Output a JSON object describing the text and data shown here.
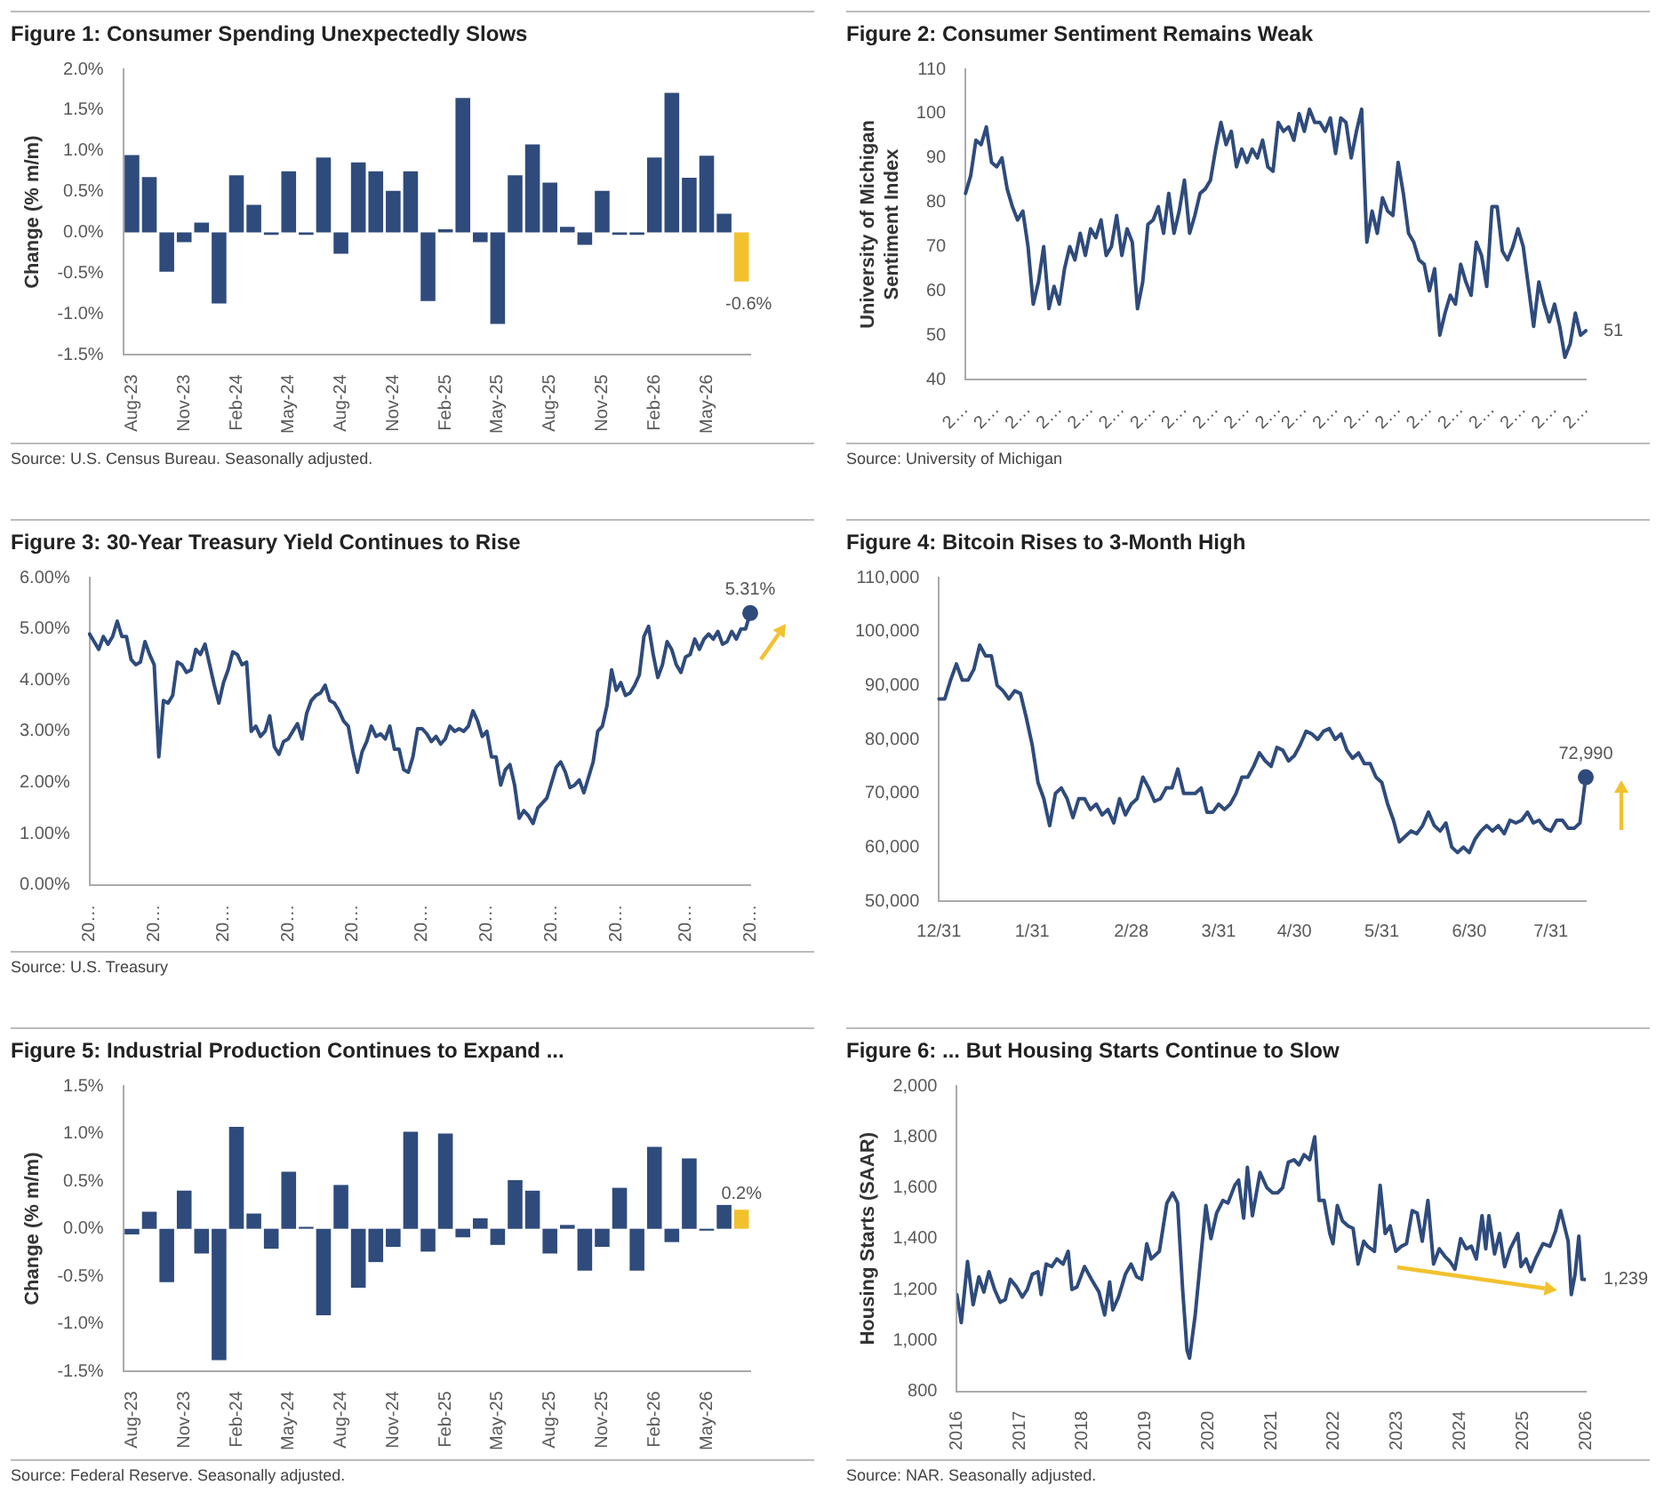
{
  "chart_data": [
    {
      "type": "bar",
      "title": "Figure 1: Consumer Spending Unexpectedly Slows",
      "ylabel": "Change (% m/m)",
      "categories": [
        "Aug-23",
        null,
        null,
        "Nov-23",
        null,
        null,
        "Feb-24",
        null,
        null,
        "May-24",
        null,
        null,
        "Aug-24",
        null,
        null,
        "Nov-24",
        null,
        null,
        "Feb-25",
        null,
        null,
        "May-25",
        null,
        null,
        "Aug-25",
        null,
        null,
        "Nov-25",
        null,
        null,
        "Feb-26",
        null,
        null,
        "May-26",
        null,
        null
      ],
      "values": [
        0.95,
        0.68,
        -0.48,
        -0.12,
        0.12,
        -0.87,
        0.7,
        0.34,
        -0.03,
        0.75,
        -0.03,
        0.92,
        -0.26,
        0.86,
        0.75,
        0.51,
        0.75,
        -0.84,
        0.04,
        1.65,
        -0.12,
        -1.12,
        0.7,
        1.08,
        0.61,
        0.07,
        -0.15,
        0.51,
        -0.03,
        -0.03,
        0.92,
        1.71,
        0.67,
        0.94,
        0.23,
        -0.6
      ],
      "colors": [
        "#2f4b7c",
        "#2f4b7c",
        "#2f4b7c",
        "#2f4b7c",
        "#2f4b7c",
        "#2f4b7c",
        "#2f4b7c",
        "#2f4b7c",
        "#2f4b7c",
        "#2f4b7c",
        "#2f4b7c",
        "#2f4b7c",
        "#2f4b7c",
        "#2f4b7c",
        "#2f4b7c",
        "#2f4b7c",
        "#2f4b7c",
        "#2f4b7c",
        "#2f4b7c",
        "#2f4b7c",
        "#2f4b7c",
        "#2f4b7c",
        "#2f4b7c",
        "#2f4b7c",
        "#2f4b7c",
        "#2f4b7c",
        "#2f4b7c",
        "#2f4b7c",
        "#2f4b7c",
        "#2f4b7c",
        "#2f4b7c",
        "#2f4b7c",
        "#2f4b7c",
        "#2f4b7c",
        "#2f4b7c",
        "#f2c12e"
      ],
      "value_labels": [
        null,
        null,
        null,
        null,
        null,
        null,
        null,
        null,
        null,
        null,
        null,
        null,
        null,
        null,
        null,
        null,
        null,
        null,
        null,
        null,
        null,
        null,
        null,
        null,
        null,
        null,
        null,
        null,
        null,
        null,
        null,
        null,
        null,
        null,
        null,
        "-0.6%"
      ],
      "ylim": [
        -1.5,
        2.0
      ],
      "yticks": [
        {
          "value": -1.5,
          "label": "-1.5%"
        },
        {
          "value": -1.0,
          "label": "-1.0%"
        },
        {
          "value": -0.5,
          "label": "-0.5%"
        },
        {
          "value": 0,
          "label": "0.0%"
        },
        {
          "value": 0.5,
          "label": "0.5%"
        },
        {
          "value": 1.0,
          "label": "1.0%"
        },
        {
          "value": 1.5,
          "label": "1.5%"
        },
        {
          "value": 2.0,
          "label": "2.0%"
        }
      ],
      "annotations": [
        "Source: U.S. Census Bureau. Seasonally adjusted."
      ]
    },
    {
      "type": "line",
      "title": "Figure 2: Consumer Sentiment Remains Weak",
      "ylabel": "University of Michigan\nSentiment Index",
      "categories": [
        "2…",
        null,
        null,
        null,
        null,
        null,
        "2…",
        null,
        null,
        null,
        null,
        null,
        "2…",
        null,
        null,
        null,
        null,
        null,
        "2…",
        null,
        null,
        null,
        null,
        null,
        "2…",
        null,
        null,
        null,
        null,
        null,
        "2…",
        null,
        null,
        null,
        null,
        null,
        "2…",
        null,
        null,
        null,
        null,
        null,
        "2…",
        null,
        null,
        null,
        null,
        null,
        "2…",
        null,
        null,
        null,
        null,
        null,
        "2…",
        null,
        null,
        null,
        null,
        null,
        "2…",
        null,
        null,
        null,
        null,
        "2…",
        null,
        null,
        null,
        null,
        null,
        "2…",
        null,
        null,
        null,
        null,
        null,
        "2…",
        null,
        null,
        null,
        null,
        null,
        "2…",
        null,
        null,
        null,
        null,
        null,
        "2…",
        null,
        null,
        null,
        null,
        null,
        "2…",
        null,
        null,
        null,
        null,
        null,
        "2…",
        null,
        null,
        null,
        null,
        null,
        "2…",
        null,
        null,
        null,
        null,
        null,
        "2…",
        null,
        null,
        null,
        null,
        null,
        "2…"
      ],
      "series": [
        {
          "color": "#2f4b7c",
          "values": [
            82,
            86,
            94,
            93,
            97,
            89,
            88,
            90,
            83,
            79,
            76,
            78,
            70,
            57,
            62,
            70,
            56,
            61,
            57,
            65,
            70,
            67,
            73,
            68,
            74,
            72,
            76,
            68,
            70,
            77,
            68,
            74,
            71,
            56,
            62,
            75,
            76,
            79,
            73,
            82,
            73,
            78,
            85,
            73,
            77,
            82,
            83,
            85,
            92,
            98,
            93,
            96,
            88,
            92,
            89,
            92,
            90,
            94,
            88,
            87,
            98,
            96,
            97,
            94,
            100,
            96,
            101,
            98,
            98,
            96,
            99,
            91,
            99,
            98,
            90,
            96,
            101,
            71,
            78,
            73,
            81,
            78,
            77,
            89,
            82,
            73,
            71,
            67,
            66,
            60,
            65,
            50,
            55,
            59,
            57,
            66,
            62,
            59,
            71,
            68,
            61,
            79,
            79,
            69,
            67,
            70,
            74,
            70,
            61,
            52,
            62,
            57,
            53,
            57,
            52,
            45,
            48,
            55,
            50,
            51
          ],
          "value_labels": [
            null,
            null,
            null,
            null,
            null,
            null,
            null,
            null,
            null,
            null,
            null,
            null,
            null,
            null,
            null,
            null,
            null,
            null,
            null,
            null,
            null,
            null,
            null,
            null,
            null,
            null,
            null,
            null,
            null,
            null,
            null,
            null,
            null,
            null,
            null,
            null,
            null,
            null,
            null,
            null,
            null,
            null,
            null,
            null,
            null,
            null,
            null,
            null,
            null,
            null,
            null,
            null,
            null,
            null,
            null,
            null,
            null,
            null,
            null,
            null,
            null,
            null,
            null,
            null,
            null,
            null,
            null,
            null,
            null,
            null,
            null,
            null,
            null,
            null,
            null,
            null,
            null,
            null,
            null,
            null,
            null,
            null,
            null,
            null,
            null,
            null,
            null,
            null,
            null,
            null,
            null,
            null,
            null,
            null,
            null,
            null,
            null,
            null,
            null,
            null,
            null,
            null,
            null,
            null,
            null,
            null,
            null,
            null,
            null,
            null,
            null,
            null,
            null,
            null,
            null,
            null,
            null,
            null,
            null,
            "51"
          ]
        }
      ],
      "ylim": [
        40,
        110
      ],
      "yticks": [
        40,
        50,
        60,
        70,
        80,
        90,
        100,
        110
      ],
      "annotations": [
        "Source: University of Michigan"
      ]
    },
    {
      "type": "line",
      "title": "Figure 3: 30-Year Treasury Yield Continues to Rise",
      "categories": [
        "20…",
        null,
        null,
        null,
        null,
        null,
        null,
        null,
        null,
        null,
        null,
        null,
        null,
        null,
        "20…",
        null,
        null,
        null,
        null,
        null,
        null,
        null,
        null,
        null,
        null,
        null,
        null,
        null,
        null,
        "20…",
        null,
        null,
        null,
        null,
        null,
        null,
        null,
        null,
        null,
        null,
        null,
        null,
        null,
        "20…",
        null,
        null,
        null,
        null,
        null,
        null,
        null,
        null,
        null,
        null,
        null,
        null,
        null,
        "20…",
        null,
        null,
        null,
        null,
        null,
        null,
        null,
        null,
        null,
        null,
        null,
        null,
        null,
        null,
        "20…",
        null,
        null,
        null,
        null,
        null,
        null,
        null,
        null,
        null,
        null,
        null,
        null,
        null,
        "20…",
        null,
        null,
        null,
        null,
        null,
        null,
        null,
        null,
        null,
        null,
        null,
        null,
        null,
        "20…",
        null,
        null,
        null,
        null,
        null,
        null,
        null,
        null,
        null,
        null,
        null,
        null,
        null,
        "20…",
        null,
        null,
        null,
        null,
        null,
        null,
        null,
        null,
        null,
        null,
        null,
        null,
        null,
        null,
        "20…",
        null,
        null,
        null,
        null,
        null,
        null,
        null,
        null,
        null,
        null,
        null,
        null,
        null,
        "20…"
      ],
      "series": [
        {
          "color": "#2f4b7c",
          "values": [
            4.9,
            4.75,
            4.6,
            4.85,
            4.7,
            4.85,
            5.15,
            4.85,
            4.85,
            4.4,
            4.3,
            4.35,
            4.75,
            4.5,
            4.3,
            2.5,
            3.6,
            3.55,
            3.7,
            4.35,
            4.3,
            4.15,
            4.2,
            4.6,
            4.5,
            4.7,
            4.3,
            3.9,
            3.55,
            3.95,
            4.2,
            4.55,
            4.5,
            4.3,
            4.35,
            3.0,
            3.1,
            2.9,
            3.0,
            3.3,
            2.7,
            2.55,
            2.8,
            2.85,
            3.0,
            3.15,
            2.85,
            3.35,
            3.6,
            3.7,
            3.75,
            3.9,
            3.6,
            3.55,
            3.4,
            3.2,
            3.1,
            2.6,
            2.2,
            2.6,
            2.8,
            3.1,
            2.9,
            2.95,
            2.85,
            3.1,
            2.65,
            2.65,
            2.25,
            2.2,
            2.5,
            3.05,
            3.05,
            2.95,
            2.8,
            2.9,
            2.75,
            2.85,
            3.1,
            3.0,
            3.05,
            3.0,
            3.1,
            3.4,
            3.2,
            2.9,
            3.0,
            2.5,
            2.5,
            1.95,
            2.25,
            2.35,
            1.95,
            1.3,
            1.45,
            1.35,
            1.2,
            1.5,
            1.6,
            1.7,
            2.0,
            2.3,
            2.4,
            2.2,
            1.9,
            1.95,
            2.05,
            1.8,
            2.1,
            2.4,
            3.0,
            3.1,
            3.5,
            4.2,
            3.8,
            3.95,
            3.7,
            3.75,
            3.9,
            4.1,
            4.85,
            5.05,
            4.5,
            4.05,
            4.3,
            4.75,
            4.6,
            4.3,
            4.15,
            4.45,
            4.5,
            4.8,
            4.6,
            4.8,
            4.9,
            4.8,
            4.95,
            4.7,
            4.75,
            4.95,
            4.8,
            5.0,
            5.0,
            5.31
          ]
        },
        {
          "type": "scatter",
          "color": "#2f4b7c",
          "values": [
            null,
            null,
            null,
            null,
            null,
            null,
            null,
            null,
            null,
            null,
            null,
            null,
            null,
            null,
            null,
            null,
            null,
            null,
            null,
            null,
            null,
            null,
            null,
            null,
            null,
            null,
            null,
            null,
            null,
            null,
            null,
            null,
            null,
            null,
            null,
            null,
            null,
            null,
            null,
            null,
            null,
            null,
            null,
            null,
            null,
            null,
            null,
            null,
            null,
            null,
            null,
            null,
            null,
            null,
            null,
            null,
            null,
            null,
            null,
            null,
            null,
            null,
            null,
            null,
            null,
            null,
            null,
            null,
            null,
            null,
            null,
            null,
            null,
            null,
            null,
            null,
            null,
            null,
            null,
            null,
            null,
            null,
            null,
            null,
            null,
            null,
            null,
            null,
            null,
            null,
            null,
            null,
            null,
            null,
            null,
            null,
            null,
            null,
            null,
            null,
            null,
            null,
            null,
            null,
            null,
            null,
            null,
            null,
            null,
            null,
            null,
            null,
            null,
            null,
            null,
            null,
            null,
            null,
            null,
            null,
            null,
            null,
            null,
            null,
            null,
            null,
            null,
            null,
            null,
            null,
            null,
            null,
            null,
            null,
            null,
            null,
            null,
            null,
            null,
            null,
            null,
            null,
            null,
            5.31
          ],
          "value_labels": [
            null,
            null,
            null,
            null,
            null,
            null,
            null,
            null,
            null,
            null,
            null,
            null,
            null,
            null,
            null,
            null,
            null,
            null,
            null,
            null,
            null,
            null,
            null,
            null,
            null,
            null,
            null,
            null,
            null,
            null,
            null,
            null,
            null,
            null,
            null,
            null,
            null,
            null,
            null,
            null,
            null,
            null,
            null,
            null,
            null,
            null,
            null,
            null,
            null,
            null,
            null,
            null,
            null,
            null,
            null,
            null,
            null,
            null,
            null,
            null,
            null,
            null,
            null,
            null,
            null,
            null,
            null,
            null,
            null,
            null,
            null,
            null,
            null,
            null,
            null,
            null,
            null,
            null,
            null,
            null,
            null,
            null,
            null,
            null,
            null,
            null,
            null,
            null,
            null,
            null,
            null,
            null,
            null,
            null,
            null,
            null,
            null,
            null,
            null,
            null,
            null,
            null,
            null,
            null,
            null,
            null,
            null,
            null,
            null,
            null,
            null,
            null,
            null,
            null,
            null,
            null,
            null,
            null,
            null,
            null,
            null,
            null,
            null,
            null,
            null,
            null,
            null,
            null,
            null,
            null,
            null,
            null,
            null,
            null,
            null,
            null,
            null,
            null,
            null,
            null,
            null,
            null,
            null,
            "5.31%"
          ]
        }
      ],
      "ylim": [
        0,
        6
      ],
      "yticks": [
        {
          "value": 0,
          "label": "0.00%"
        },
        {
          "value": 1,
          "label": "1.00%"
        },
        {
          "value": 2,
          "label": "2.00%"
        },
        {
          "value": 3,
          "label": "3.00%"
        },
        {
          "value": 4,
          "label": "4.00%"
        },
        {
          "value": 5,
          "label": "5.00%"
        },
        {
          "value": 6,
          "label": "6.00%"
        }
      ],
      "annotations": [
        "Source: U.S. Treasury"
      ]
    },
    {
      "type": "line",
      "title": "Figure 4: Bitcoin Rises to 3-Month High",
      "categories": [
        "12/31",
        null,
        null,
        null,
        null,
        null,
        null,
        null,
        null,
        null,
        null,
        null,
        null,
        null,
        null,
        null,
        "1/31",
        null,
        null,
        null,
        null,
        null,
        null,
        null,
        null,
        null,
        null,
        null,
        null,
        null,
        null,
        null,
        null,
        "2/28",
        null,
        null,
        null,
        null,
        null,
        null,
        null,
        null,
        null,
        null,
        null,
        null,
        null,
        null,
        "3/31",
        null,
        null,
        null,
        null,
        null,
        null,
        null,
        null,
        null,
        null,
        null,
        null,
        "4/30",
        null,
        null,
        null,
        null,
        null,
        null,
        null,
        null,
        null,
        null,
        null,
        null,
        null,
        null,
        "5/31",
        null,
        null,
        null,
        null,
        null,
        null,
        null,
        null,
        null,
        null,
        null,
        null,
        null,
        null,
        "6/30",
        null,
        null,
        null,
        null,
        null,
        null,
        null,
        null,
        null,
        null,
        null,
        null,
        null,
        "7/31",
        null,
        null,
        null,
        null,
        null,
        null
      ],
      "series": [
        {
          "color": "#2f4b7c",
          "values": [
            87500,
            87500,
            91000,
            94000,
            91000,
            91000,
            93000,
            97500,
            95500,
            95500,
            90000,
            89000,
            87500,
            89000,
            88500,
            84000,
            79000,
            72000,
            69000,
            64000,
            70000,
            71000,
            69000,
            65500,
            69000,
            69000,
            67000,
            68000,
            66000,
            67000,
            64500,
            69000,
            66000,
            68000,
            69000,
            73000,
            71000,
            68500,
            69000,
            71000,
            71000,
            74500,
            70000,
            70000,
            70000,
            71000,
            66500,
            66500,
            68000,
            67000,
            68000,
            70000,
            73000,
            73000,
            75000,
            77500,
            76000,
            75000,
            78500,
            78000,
            76000,
            77000,
            79000,
            81500,
            81000,
            80000,
            81500,
            82000,
            80000,
            81000,
            78000,
            76500,
            77500,
            75500,
            75500,
            73000,
            72000,
            68000,
            65000,
            61000,
            62000,
            63000,
            62500,
            64000,
            66500,
            64000,
            63000,
            64500,
            60000,
            59000,
            60000,
            59000,
            61500,
            63000,
            64000,
            63000,
            64000,
            62500,
            65000,
            64500,
            65000,
            66500,
            64500,
            65000,
            63500,
            63000,
            65000,
            65000,
            63500,
            63500,
            64500,
            72990
          ]
        },
        {
          "type": "scatter",
          "color": "#2f4b7c",
          "values": [
            null,
            null,
            null,
            null,
            null,
            null,
            null,
            null,
            null,
            null,
            null,
            null,
            null,
            null,
            null,
            null,
            null,
            null,
            null,
            null,
            null,
            null,
            null,
            null,
            null,
            null,
            null,
            null,
            null,
            null,
            null,
            null,
            null,
            null,
            null,
            null,
            null,
            null,
            null,
            null,
            null,
            null,
            null,
            null,
            null,
            null,
            null,
            null,
            null,
            null,
            null,
            null,
            null,
            null,
            null,
            null,
            null,
            null,
            null,
            null,
            null,
            null,
            null,
            null,
            null,
            null,
            null,
            null,
            null,
            null,
            null,
            null,
            null,
            null,
            null,
            null,
            null,
            null,
            null,
            null,
            null,
            null,
            null,
            null,
            null,
            null,
            null,
            null,
            null,
            null,
            null,
            null,
            null,
            null,
            null,
            null,
            null,
            null,
            null,
            null,
            null,
            null,
            null,
            null,
            null,
            null,
            null,
            null,
            null,
            null,
            null,
            72990
          ],
          "value_labels": [
            null,
            null,
            null,
            null,
            null,
            null,
            null,
            null,
            null,
            null,
            null,
            null,
            null,
            null,
            null,
            null,
            null,
            null,
            null,
            null,
            null,
            null,
            null,
            null,
            null,
            null,
            null,
            null,
            null,
            null,
            null,
            null,
            null,
            null,
            null,
            null,
            null,
            null,
            null,
            null,
            null,
            null,
            null,
            null,
            null,
            null,
            null,
            null,
            null,
            null,
            null,
            null,
            null,
            null,
            null,
            null,
            null,
            null,
            null,
            null,
            null,
            null,
            null,
            null,
            null,
            null,
            null,
            null,
            null,
            null,
            null,
            null,
            null,
            null,
            null,
            null,
            null,
            null,
            null,
            null,
            null,
            null,
            null,
            null,
            null,
            null,
            null,
            null,
            null,
            null,
            null,
            null,
            null,
            null,
            null,
            null,
            null,
            null,
            null,
            null,
            null,
            null,
            null,
            null,
            null,
            null,
            null,
            null,
            null,
            null,
            null,
            "72,990"
          ]
        }
      ],
      "ylim": [
        50000,
        110000
      ],
      "yticks": [
        {
          "value": 50000,
          "label": "50,000"
        },
        {
          "value": 60000,
          "label": "60,000"
        },
        {
          "value": 70000,
          "label": "70,000"
        },
        {
          "value": 80000,
          "label": "80,000"
        },
        {
          "value": 90000,
          "label": "90,000"
        },
        {
          "value": 100000,
          "label": "100,000"
        },
        {
          "value": 110000,
          "label": "110,000"
        }
      ]
    },
    {
      "type": "bar",
      "title": "Figure 5: Industrial Production Continues to Expand ...",
      "ylabel": "Change (% m/m)",
      "categories": [
        "Aug-23",
        null,
        null,
        "Nov-23",
        null,
        null,
        "Feb-24",
        null,
        null,
        "May-24",
        null,
        null,
        "Aug-24",
        null,
        null,
        "Nov-24",
        null,
        null,
        "Feb-25",
        null,
        null,
        "May-25",
        null,
        null,
        "Aug-25",
        null,
        null,
        "Nov-25",
        null,
        null,
        "Feb-26",
        null,
        null,
        "May-26",
        null,
        null
      ],
      "values": [
        -0.06,
        0.18,
        -0.56,
        0.4,
        -0.26,
        -1.38,
        1.07,
        0.16,
        -0.21,
        0.6,
        0.02,
        -0.91,
        0.46,
        -0.62,
        -0.35,
        -0.19,
        1.02,
        -0.24,
        1.0,
        -0.09,
        0.11,
        -0.17,
        0.51,
        0.4,
        -0.26,
        0.04,
        -0.44,
        -0.19,
        0.43,
        -0.44,
        0.86,
        -0.14,
        0.74,
        -0.02,
        0.25,
        0.2
      ],
      "colors": [
        "#2f4b7c",
        "#2f4b7c",
        "#2f4b7c",
        "#2f4b7c",
        "#2f4b7c",
        "#2f4b7c",
        "#2f4b7c",
        "#2f4b7c",
        "#2f4b7c",
        "#2f4b7c",
        "#2f4b7c",
        "#2f4b7c",
        "#2f4b7c",
        "#2f4b7c",
        "#2f4b7c",
        "#2f4b7c",
        "#2f4b7c",
        "#2f4b7c",
        "#2f4b7c",
        "#2f4b7c",
        "#2f4b7c",
        "#2f4b7c",
        "#2f4b7c",
        "#2f4b7c",
        "#2f4b7c",
        "#2f4b7c",
        "#2f4b7c",
        "#2f4b7c",
        "#2f4b7c",
        "#2f4b7c",
        "#2f4b7c",
        "#2f4b7c",
        "#2f4b7c",
        "#2f4b7c",
        "#2f4b7c",
        "#f2c12e"
      ],
      "value_labels": [
        null,
        null,
        null,
        null,
        null,
        null,
        null,
        null,
        null,
        null,
        null,
        null,
        null,
        null,
        null,
        null,
        null,
        null,
        null,
        null,
        null,
        null,
        null,
        null,
        null,
        null,
        null,
        null,
        null,
        null,
        null,
        null,
        null,
        null,
        null,
        "0.2%"
      ],
      "ylim": [
        -1.5,
        1.5
      ],
      "yticks": [
        {
          "value": -1.5,
          "label": "-1.5%"
        },
        {
          "value": -1.0,
          "label": "-1.0%"
        },
        {
          "value": -0.5,
          "label": "-0.5%"
        },
        {
          "value": 0,
          "label": "0.0%"
        },
        {
          "value": 0.5,
          "label": "0.5%"
        },
        {
          "value": 1.0,
          "label": "1.0%"
        },
        {
          "value": 1.5,
          "label": "1.5%"
        }
      ],
      "annotations": [
        "Source: Federal Reserve. Seasonally adjusted."
      ]
    },
    {
      "type": "line",
      "title": "Figure 6: ... But Housing Starts Continue to Slow",
      "ylabel": "Housing Starts (SAAR)",
      "x": [
        2016.0,
        2016.07,
        2016.17,
        2016.26,
        2016.35,
        2016.43,
        2016.51,
        2016.6,
        2016.69,
        2016.77,
        2016.85,
        2016.95,
        2017.04,
        2017.12,
        2017.2,
        2017.29,
        2017.34,
        2017.42,
        2017.51,
        2017.59,
        2017.69,
        2017.77,
        2017.83,
        2017.91,
        2018.03,
        2018.14,
        2018.26,
        2018.35,
        2018.43,
        2018.48,
        2018.57,
        2018.68,
        2018.77,
        2018.86,
        2018.94,
        2019.02,
        2019.09,
        2019.22,
        2019.34,
        2019.43,
        2019.51,
        2019.59,
        2019.66,
        2019.7,
        2019.79,
        2019.88,
        2019.96,
        2020.04,
        2020.13,
        2020.23,
        2020.31,
        2020.42,
        2020.48,
        2020.56,
        2020.62,
        2020.7,
        2020.82,
        2020.93,
        2021.02,
        2021.1,
        2021.18,
        2021.27,
        2021.36,
        2021.44,
        2021.52,
        2021.61,
        2021.69,
        2021.76,
        2021.84,
        2021.93,
        2021.98,
        2022.05,
        2022.13,
        2022.22,
        2022.3,
        2022.38,
        2022.47,
        2022.53,
        2022.64,
        2022.73,
        2022.81,
        2022.89,
        2022.98,
        2023.07,
        2023.15,
        2023.24,
        2023.32,
        2023.4,
        2023.49,
        2023.58,
        2023.67,
        2023.76,
        2023.84,
        2023.92,
        2024.01,
        2024.1,
        2024.18,
        2024.26,
        2024.35,
        2024.41,
        2024.46,
        2024.55,
        2024.63,
        2024.71,
        2024.8,
        2024.92,
        2024.97,
        2025.05,
        2025.12,
        2025.2,
        2025.32,
        2025.43,
        2025.52,
        2025.6,
        2025.72,
        2025.77,
        2025.83,
        2025.89,
        2025.94,
        2026.0
      ],
      "series": [
        {
          "color": "#2f4b7c",
          "values": [
            1180,
            1070,
            1310,
            1140,
            1250,
            1190,
            1270,
            1200,
            1150,
            1160,
            1240,
            1210,
            1170,
            1200,
            1260,
            1270,
            1180,
            1300,
            1290,
            1320,
            1300,
            1350,
            1200,
            1210,
            1290,
            1240,
            1190,
            1100,
            1230,
            1120,
            1170,
            1260,
            1300,
            1250,
            1240,
            1380,
            1320,
            1350,
            1540,
            1580,
            1540,
            1200,
            960,
            930,
            1100,
            1330,
            1530,
            1400,
            1500,
            1550,
            1540,
            1610,
            1630,
            1480,
            1680,
            1490,
            1660,
            1600,
            1580,
            1580,
            1600,
            1700,
            1710,
            1690,
            1730,
            1710,
            1800,
            1550,
            1550,
            1420,
            1380,
            1530,
            1470,
            1450,
            1440,
            1300,
            1390,
            1370,
            1350,
            1610,
            1420,
            1450,
            1350,
            1370,
            1380,
            1510,
            1500,
            1390,
            1550,
            1300,
            1360,
            1330,
            1310,
            1280,
            1400,
            1360,
            1370,
            1320,
            1490,
            1360,
            1490,
            1340,
            1420,
            1290,
            1360,
            1420,
            1290,
            1320,
            1270,
            1320,
            1380,
            1370,
            1430,
            1510,
            1390,
            1180,
            1260,
            1410,
            1240,
            1239
          ],
          "value_labels": [
            null,
            null,
            null,
            null,
            null,
            null,
            null,
            null,
            null,
            null,
            null,
            null,
            null,
            null,
            null,
            null,
            null,
            null,
            null,
            null,
            null,
            null,
            null,
            null,
            null,
            null,
            null,
            null,
            null,
            null,
            null,
            null,
            null,
            null,
            null,
            null,
            null,
            null,
            null,
            null,
            null,
            null,
            null,
            null,
            null,
            null,
            null,
            null,
            null,
            null,
            null,
            null,
            null,
            null,
            null,
            null,
            null,
            null,
            null,
            null,
            null,
            null,
            null,
            null,
            null,
            null,
            null,
            null,
            null,
            null,
            null,
            null,
            null,
            null,
            null,
            null,
            null,
            null,
            null,
            null,
            null,
            null,
            null,
            null,
            null,
            null,
            null,
            null,
            null,
            null,
            null,
            null,
            null,
            null,
            null,
            null,
            null,
            null,
            null,
            null,
            null,
            null,
            null,
            null,
            null,
            null,
            null,
            null,
            null,
            null,
            null,
            null,
            null,
            null,
            null,
            null,
            null,
            null,
            null,
            "1,239"
          ]
        }
      ],
      "xlim": [
        2016,
        2026
      ],
      "xticks": [
        2016,
        2017,
        2018,
        2019,
        2020,
        2021,
        2022,
        2023,
        2024,
        2025,
        2026
      ],
      "ylim": [
        800,
        2000
      ],
      "yticks": [
        800,
        {
          "value": 1000,
          "label": "1,000"
        },
        {
          "value": 1200,
          "label": "1,200"
        },
        {
          "value": 1400,
          "label": "1,400"
        },
        {
          "value": 1600,
          "label": "1,600"
        },
        {
          "value": 1800,
          "label": "1,800"
        },
        {
          "value": 2000,
          "label": "2,000"
        }
      ],
      "annotations": [
        "Source: NAR. Seasonally adjusted."
      ]
    }
  ]
}
